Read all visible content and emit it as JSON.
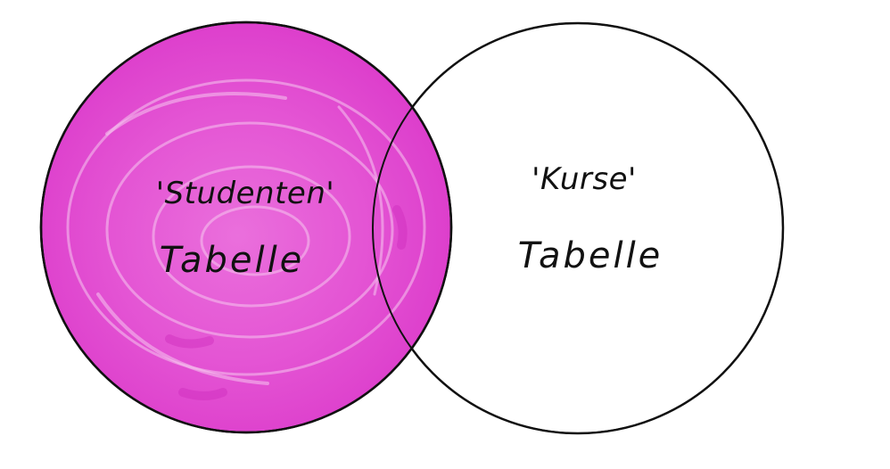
{
  "diagram": {
    "type": "venn",
    "left_set": {
      "name": "'Studenten'",
      "subtitle": "Tabelle",
      "fill": "#e24fd0",
      "highlighted": true
    },
    "right_set": {
      "name": "'Kurse'",
      "subtitle": "Tabelle",
      "fill": "#ffffff",
      "highlighted": false
    },
    "stroke": "#111111"
  }
}
